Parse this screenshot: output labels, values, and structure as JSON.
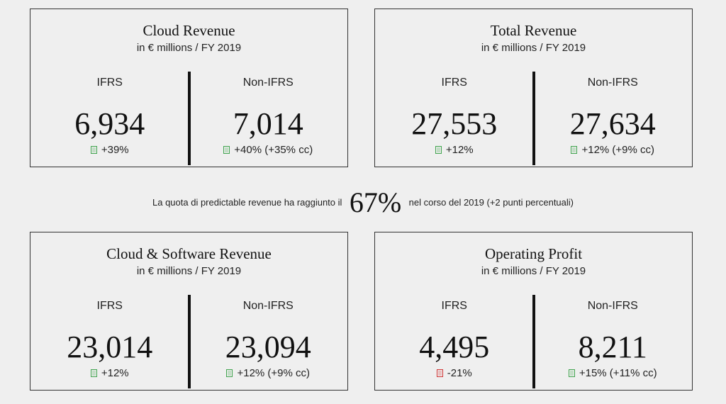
{
  "cards": [
    {
      "title": "Cloud Revenue",
      "subtitle": "in € millions / FY 2019",
      "left": {
        "head": "IFRS",
        "value": "6,934",
        "change": "+39%",
        "dir": "up"
      },
      "right": {
        "head": "Non-IFRS",
        "value": "7,014",
        "change": "+40% (+35% cc)",
        "dir": "up"
      }
    },
    {
      "title": "Total Revenue",
      "subtitle": "in € millions / FY 2019",
      "left": {
        "head": "IFRS",
        "value": "27,553",
        "change": "+12%",
        "dir": "up"
      },
      "right": {
        "head": "Non-IFRS",
        "value": "27,634",
        "change": "+12% (+9% cc)",
        "dir": "up"
      }
    },
    {
      "title": "Cloud & Software Revenue",
      "subtitle": "in € millions / FY 2019",
      "left": {
        "head": "IFRS",
        "value": "23,014",
        "change": "+12%",
        "dir": "up"
      },
      "right": {
        "head": "Non-IFRS",
        "value": "23,094",
        "change": "+12% (+9% cc)",
        "dir": "up"
      }
    },
    {
      "title": "Operating Profit",
      "subtitle": "in € millions / FY 2019",
      "left": {
        "head": "IFRS",
        "value": "4,495",
        "change": "-21%",
        "dir": "down"
      },
      "right": {
        "head": "Non-IFRS",
        "value": "8,211",
        "change": "+15% (+11% cc)",
        "dir": "up"
      }
    }
  ],
  "middle": {
    "before": "La quota di predictable revenue ha raggiunto il",
    "value": "67%",
    "after": "nel corso del 2019 (+2 punti percentuali)"
  },
  "colors": {
    "up": "#3fa34d",
    "down": "#d03434",
    "background": "#efefef"
  }
}
